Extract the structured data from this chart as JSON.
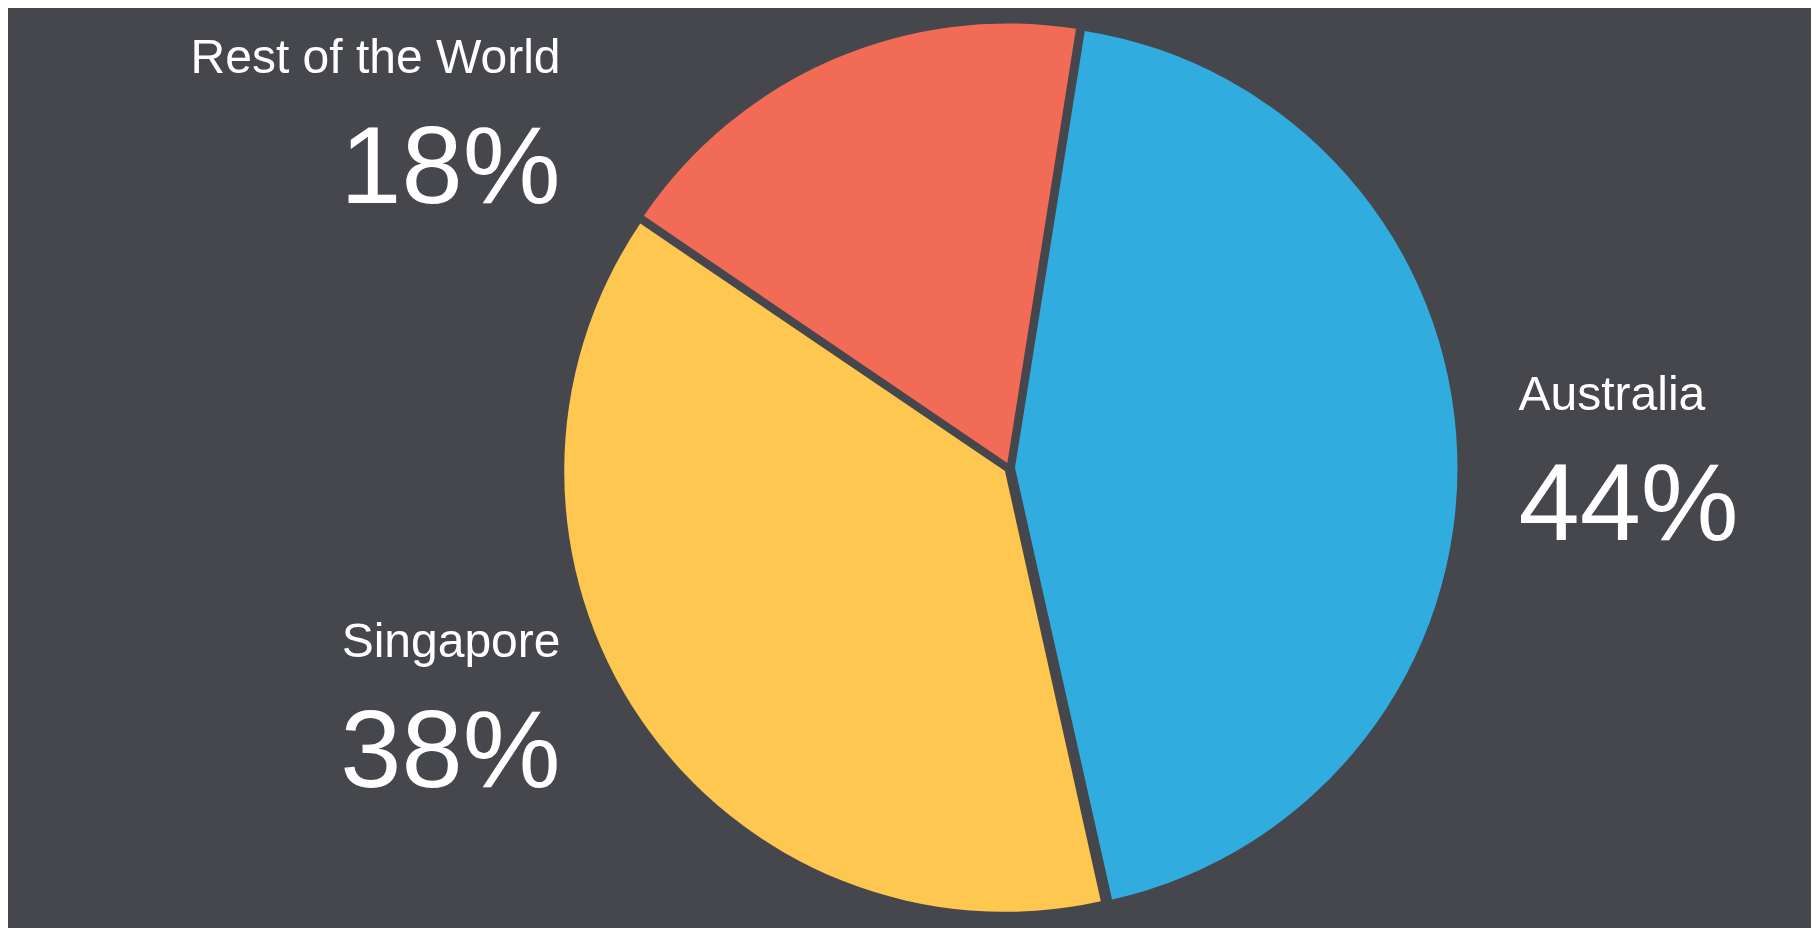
{
  "chart_data": {
    "type": "pie",
    "categories": [
      "Australia",
      "Singapore",
      "Rest of the World"
    ],
    "values": [
      44,
      38,
      18
    ],
    "colors": [
      "#31acdf",
      "#fec74f",
      "#f26b57"
    ],
    "value_labels": [
      "44%",
      "38%",
      "18%"
    ],
    "legend": false
  }
}
